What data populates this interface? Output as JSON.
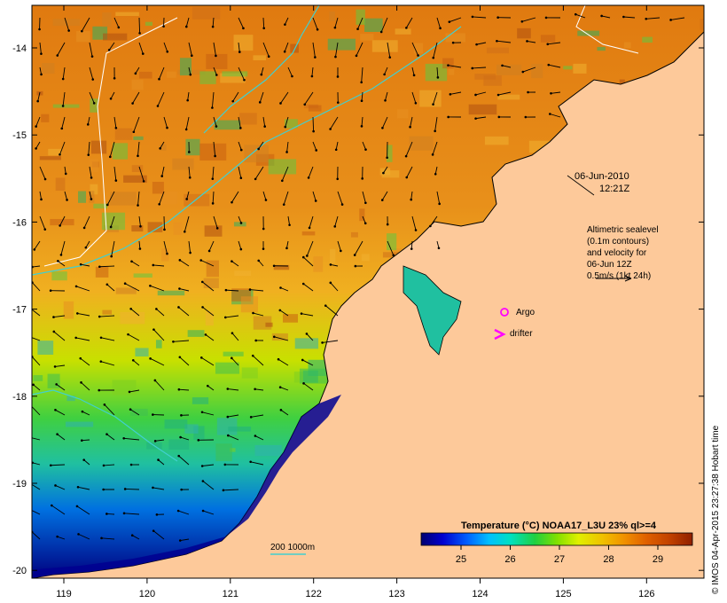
{
  "map": {
    "date": "06-Jun-2010",
    "time": "12:21Z",
    "x_ticks": [
      "119",
      "120",
      "121",
      "122",
      "123",
      "124",
      "125",
      "126"
    ],
    "y_ticks": [
      "-14",
      "-15",
      "-16",
      "-17",
      "-18",
      "-19",
      "-20"
    ],
    "legend_lines": [
      "Altimetric sealevel",
      "(0.1m contours)",
      "and velocity for",
      "06-Jun 12Z",
      "0.5m/s (1kt 24h)"
    ],
    "argo_label": "Argo",
    "drifter_label": "drifter",
    "depth_label": "200  1000m",
    "colorbar": {
      "title": "Temperature (°C) NOAA17_L3U 23% ql>=4",
      "ticks": [
        "25",
        "26",
        "27",
        "28",
        "29"
      ],
      "colors": [
        "#000070",
        "#0000d0",
        "#0060ff",
        "#00c0ff",
        "#00e0c0",
        "#20d040",
        "#80e000",
        "#e0f000",
        "#f0c000",
        "#f09000",
        "#e06000",
        "#c04000",
        "#902000"
      ]
    },
    "credit": "© IMOS 04-Apr-2015 23:27:38 Hobart time",
    "colors": {
      "land": "#fdc99a",
      "contour": "#40d0d0",
      "depth_line": "#40d0d0",
      "argo": "#ff00ff",
      "drifter": "#ff00ff"
    }
  }
}
